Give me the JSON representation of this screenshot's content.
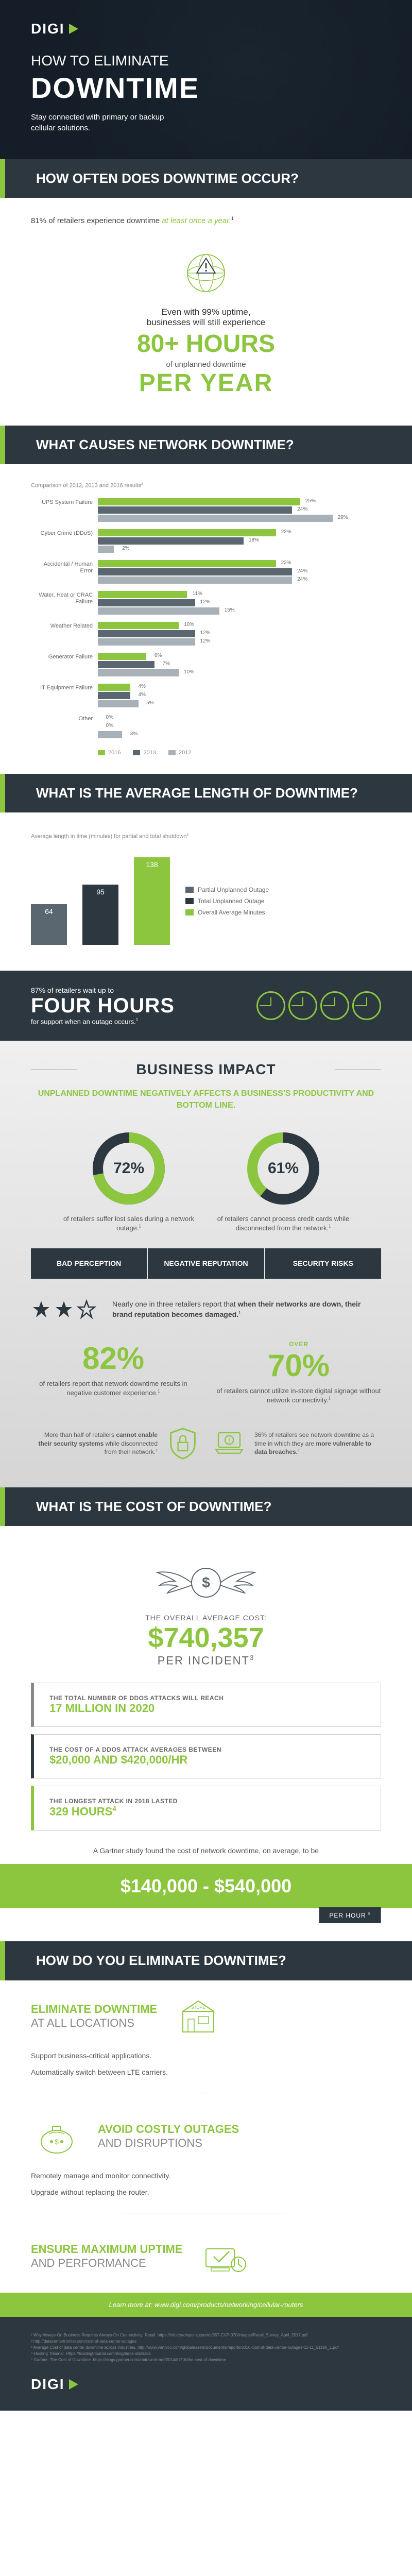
{
  "brand": "DIGI",
  "hero": {
    "line1": "HOW TO ELIMINATE",
    "line2": "DOWNTIME",
    "sub": "Stay connected with primary or backup cellular solutions."
  },
  "sec1": {
    "title": "HOW OFTEN DOES DOWNTIME OCCUR?",
    "lead_a": "81% of retailers experience downtime",
    "lead_b": "at least once a year.",
    "sup": "1",
    "up1": "Even with 99% uptime,",
    "up2": "businesses will still experience",
    "up3": "80+ HOURS",
    "up4": "of unplanned downtime",
    "up5": "PER YEAR"
  },
  "sec2": {
    "title": "WHAT CAUSES NETWORK DOWNTIME?",
    "note": "Comparison of 2012, 2013 and 2016 results",
    "sup": "2",
    "colors": {
      "y2016": "#8cc63f",
      "y2013": "#5a6670",
      "y2012": "#a8b0b8"
    },
    "max": 35,
    "categories": [
      {
        "label": "UPS System Failure",
        "v": [
          25,
          24,
          29
        ]
      },
      {
        "label": "Cyber Crime (DDoS)",
        "v": [
          22,
          18,
          2
        ]
      },
      {
        "label": "Accidental / Human Error",
        "v": [
          22,
          24,
          24
        ]
      },
      {
        "label": "Water, Heat or CRAC Failure",
        "v": [
          11,
          12,
          15
        ]
      },
      {
        "label": "Weather Related",
        "v": [
          10,
          12,
          12
        ]
      },
      {
        "label": "Generator Failure",
        "v": [
          6,
          7,
          10
        ]
      },
      {
        "label": "IT Equipment Failure",
        "v": [
          4,
          4,
          5
        ]
      },
      {
        "label": "Other",
        "v": [
          0,
          0,
          3
        ]
      }
    ],
    "legend": [
      "2016",
      "2013",
      "2012"
    ]
  },
  "sec3": {
    "title": "WHAT IS THE AVERAGE LENGTH OF DOWNTIME?",
    "note": "Average length in time (minutes) for partial and total shutdown",
    "sup": "3",
    "bars": [
      {
        "label": 64,
        "h": 64,
        "color": "#5a6670"
      },
      {
        "label": 95,
        "h": 95,
        "color": "#2d3740"
      },
      {
        "label": 138,
        "h": 138,
        "color": "#8cc63f"
      }
    ],
    "legend": [
      {
        "label": "Partial Unplanned Outage",
        "color": "#5a6670"
      },
      {
        "label": "Total Unplanned Outage",
        "color": "#2d3740"
      },
      {
        "label": "Overall Average Minutes",
        "color": "#8cc63f"
      }
    ],
    "fourhours_t1": "87% of retailers wait up to",
    "fourhours_t2": "FOUR HOURS",
    "fourhours_t3": "for support when an outage occurs.",
    "fourhours_sup": "1"
  },
  "biz": {
    "title": "BUSINESS IMPACT",
    "sub": "UNPLANNED DOWNTIME NEGATIVELY AFFECTS A BUSINESS'S PRODUCTIVITY AND BOTTOM LINE.",
    "donuts": [
      {
        "pct": 72,
        "text": "of retailers suffer lost sales during a network outage.",
        "sup": "1",
        "color": "#8cc63f",
        "track": "#2d3740"
      },
      {
        "pct": 61,
        "text": "of retailers cannot process credit cards while disconnected from the network.",
        "sup": "1",
        "color": "#2d3740",
        "track": "#8cc63f"
      }
    ],
    "badges": [
      "BAD PERCEPTION",
      "NEGATIVE REPUTATION",
      "SECURITY RISKS"
    ],
    "stars_text_a": "Nearly one in three retailers report that",
    "stars_text_b": "when their networks are down, their brand reputation becomes damaged.",
    "stars_sup": "1",
    "pcts": [
      {
        "over": "",
        "big": "82%",
        "text": "of retailers report that network downtime results in negative customer experience.",
        "sup": "1"
      },
      {
        "over": "OVER",
        "big": "70%",
        "text": "of retailers cannot utilize in-store digital signage without network connectivity.",
        "sup": "1"
      }
    ],
    "iconrows": [
      {
        "text_a": "More than half of retailers",
        "text_b": "cannot enable their security systems",
        "text_c": "while disconnected from their network.",
        "sup": "1"
      },
      {
        "text_a": "36% of retailers see network downtime as a time in which they are",
        "text_b": "more vulnerable to data breaches.",
        "text_c": "",
        "sup": "1"
      }
    ]
  },
  "cost": {
    "title": "WHAT IS THE COST OF DOWNTIME?",
    "overall_label": "THE OVERALL AVERAGE COST:",
    "amount": "$740,357",
    "per": "PER INCIDENT",
    "per_sup": "3",
    "facts": [
      {
        "t1": "THE TOTAL NUMBER OF DDOS ATTACKS WILL REACH",
        "t2": "17 MILLION IN 2020",
        "cls": ""
      },
      {
        "t1": "THE COST OF A DDOS ATTACK AVERAGES BETWEEN",
        "t2": "$20,000 AND $420,000/HR",
        "cls": "dark"
      },
      {
        "t1": "THE LONGEST ATTACK IN 2018 LASTED",
        "t2": "329 HOURS",
        "cls": "green",
        "sup": "4"
      }
    ],
    "gartner": "A Gartner study found the cost of network downtime, on average, to be",
    "range": "$140,000 - $540,000",
    "perhour": "PER HOUR",
    "perhour_sup": "5"
  },
  "elim": {
    "title": "HOW DO YOU ELIMINATE DOWNTIME?",
    "blocks": [
      {
        "h1": "ELIMINATE  DOWNTIME",
        "h2": "AT ALL LOCATIONS",
        "bullets": [
          "Support business-critical applications.",
          "Automatically switch between LTE carriers."
        ]
      },
      {
        "h1": "AVOID COSTLY OUTAGES",
        "h2": "AND  DISRUPTIONS",
        "bullets": [
          "Remotely manage and monitor connectivity.",
          "Upgrade without replacing the router."
        ]
      },
      {
        "h1": "ENSURE MAXIMUM UPTIME",
        "h2": "AND PERFORMANCE",
        "bullets": []
      }
    ]
  },
  "learn": "Learn more at: www.digi.com/products/networking/cellular-routers",
  "footer_lines": [
    "¹ Why Always-On Business Requires Always-On Connectivity: Retail. https://info.cradlepoint.com/rs/857-CVP-070/images/Retail_Survey_April_2017.pdf",
    "² http://datacenterfrontier.com/cost-of-data-center-outages",
    "³ Average Cost of data center downtime across industries. http://www.vertivco.com/globalassets/documents/reports/2016-cost-of-data-center-outages-11-11_51190_1.pdf",
    "⁴ Hosting Tribunal. Https://hostingtribunal.com/blog/ddos-statistics",
    "⁵ Gartner: The Cost of Downtime. https://blogs.gartner.com/andrew-lerner/2014/07/16/the-cost-of-downtime"
  ]
}
